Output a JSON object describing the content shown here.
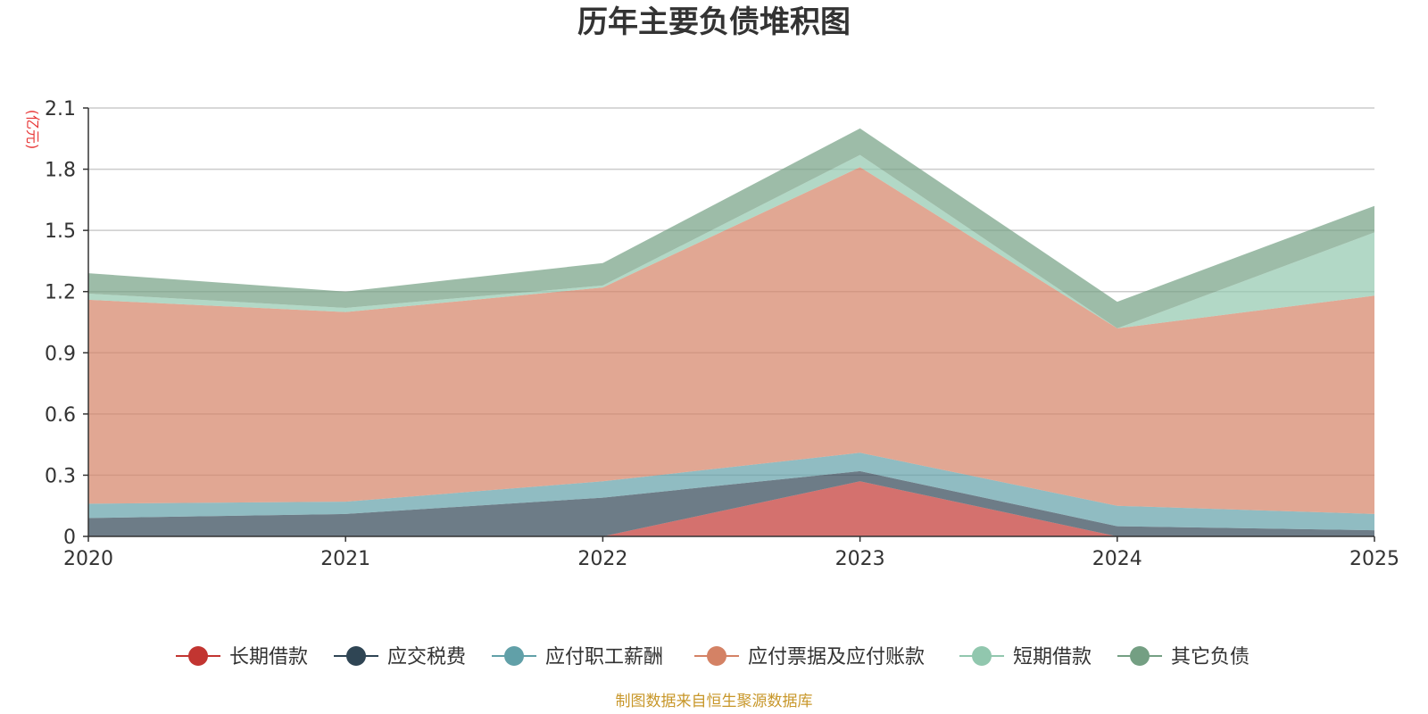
{
  "chart_data": {
    "type": "area",
    "stacked": true,
    "title": "历年主要负债堆积图",
    "unit_label": "(亿元)",
    "source": "制图数据来自恒生聚源数据库",
    "categories": [
      "2020",
      "2021",
      "2022",
      "2023",
      "2024",
      "2025"
    ],
    "ylim": [
      0,
      2.1
    ],
    "yticks": [
      "0",
      "0.3",
      "0.6",
      "0.9",
      "1.2",
      "1.5",
      "1.8",
      "2.1"
    ],
    "ytick_values": [
      0,
      0.3,
      0.6,
      0.9,
      1.2,
      1.5,
      1.8,
      2.1
    ],
    "grid": true,
    "legend_position": "bottom",
    "series": [
      {
        "name": "长期借款",
        "color": "#c23531",
        "values": [
          0.0,
          0.0,
          0.0,
          0.27,
          0.0,
          0.0
        ]
      },
      {
        "name": "应交税费",
        "color": "#2f4554",
        "values": [
          0.09,
          0.11,
          0.19,
          0.05,
          0.05,
          0.03
        ]
      },
      {
        "name": "应付职工薪酬",
        "color": "#61a0a8",
        "values": [
          0.07,
          0.06,
          0.08,
          0.09,
          0.1,
          0.08
        ]
      },
      {
        "name": "应付票据及应付账款",
        "color": "#d48265",
        "values": [
          1.0,
          0.93,
          0.95,
          1.4,
          0.87,
          1.07
        ]
      },
      {
        "name": "短期借款",
        "color": "#91c7ae",
        "values": [
          0.03,
          0.02,
          0.01,
          0.06,
          0.0,
          0.31
        ]
      },
      {
        "name": "其它负债",
        "color": "#749f83",
        "values": [
          0.1,
          0.08,
          0.11,
          0.13,
          0.13,
          0.13
        ]
      }
    ]
  }
}
